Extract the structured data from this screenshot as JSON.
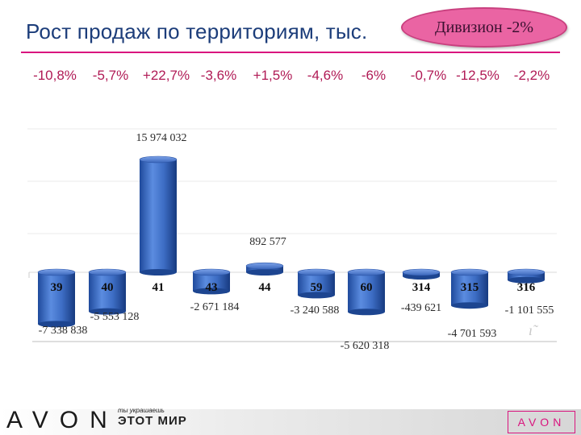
{
  "slide": {
    "title": "Рост продаж по территориям, тыс.",
    "division_badge": "Дивизион  -2%",
    "growth_labels": [
      "-10,8%",
      "-5,7%",
      "+22,7%",
      "-3,6%",
      "+1,5%",
      "-4,6%",
      "-6%",
      "-0,7%",
      "-12,5%",
      "-2,2%"
    ],
    "footer": {
      "logo": "AVON",
      "slogan_small": "ты украшаешь",
      "slogan": "ЭТОТ МИР",
      "logo_box": "AVON"
    }
  },
  "colors": {
    "title": "#1c3d7a",
    "accent": "#d9147e",
    "badge_fill": "#ea64a3",
    "bar_fill": "#3f6fc7",
    "growth_text": "#b01a55"
  },
  "chart_data": {
    "type": "bar",
    "categories": [
      "39",
      "40",
      "41",
      "43",
      "44",
      "59",
      "60",
      "314",
      "315",
      "316"
    ],
    "values": [
      -7338838,
      -5553128,
      15974032,
      -2671184,
      892577,
      -3240588,
      -5620318,
      -439621,
      -4701593,
      -1101555
    ],
    "value_labels": [
      "-7 338 838",
      "-5 553 128",
      "15 974 032",
      "-2 671 184",
      "892 577",
      "-3 240 588",
      "-5 620 318",
      "-439 621",
      "-4 701 593",
      "-1 101 555"
    ],
    "title": "",
    "xlabel": "",
    "ylabel": "",
    "grid": true,
    "legend": "none"
  }
}
